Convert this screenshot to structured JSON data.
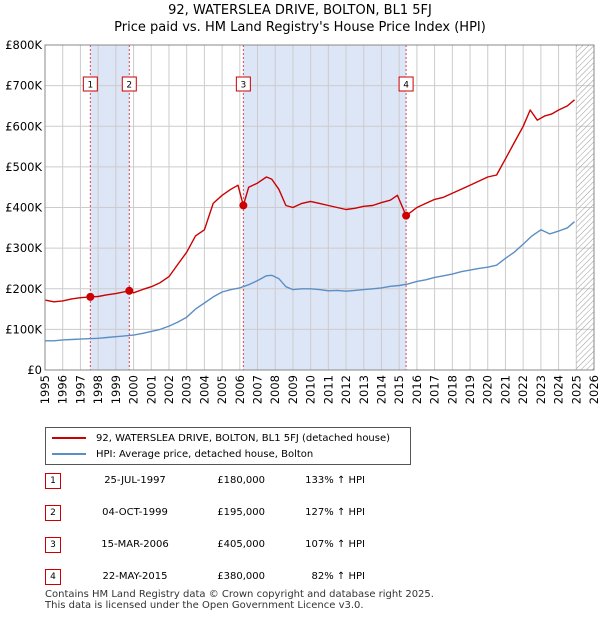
{
  "chart_data": {
    "type": "line",
    "title": "92, WATERSLEA DRIVE, BOLTON, BL1 5FJ",
    "subtitle": "Price paid vs. HM Land Registry's House Price Index (HPI)",
    "xlabel": "",
    "ylabel": "",
    "xlim": [
      1995,
      2026
    ],
    "ylim": [
      0,
      800000
    ],
    "x_ticks": [
      "1995",
      "1996",
      "1997",
      "1998",
      "1999",
      "2000",
      "2001",
      "2002",
      "2003",
      "2004",
      "2005",
      "2006",
      "2007",
      "2008",
      "2009",
      "2010",
      "2011",
      "2012",
      "2013",
      "2014",
      "2015",
      "2016",
      "2017",
      "2018",
      "2019",
      "2020",
      "2021",
      "2022",
      "2023",
      "2024",
      "2025",
      "2026"
    ],
    "y_ticks": [
      "£0",
      "£100K",
      "£200K",
      "£300K",
      "£400K",
      "£500K",
      "£600K",
      "£700K",
      "£800K"
    ],
    "y_tick_values": [
      0,
      100000,
      200000,
      300000,
      400000,
      500000,
      600000,
      700000,
      800000
    ],
    "colors": {
      "property": "#cc0000",
      "hpi": "#5b8ec4",
      "shade": "#dde6f7",
      "grid": "#cccccc",
      "marker": "#cc0000",
      "hatch": "#999999"
    },
    "forecast_start": 2025.0,
    "series": [
      {
        "name": "92, WATERSLEA DRIVE, BOLTON, BL1 5FJ (detached house)",
        "color": "#cc0000",
        "x": [
          1995.0,
          1995.5,
          1996.0,
          1996.5,
          1997.0,
          1997.56,
          1998.0,
          1998.5,
          1999.0,
          1999.76,
          2000.0,
          2000.5,
          2001.0,
          2001.5,
          2002.0,
          2002.5,
          2003.0,
          2003.5,
          2004.0,
          2004.5,
          2005.0,
          2005.5,
          2005.9,
          2006.2,
          2006.5,
          2007.0,
          2007.5,
          2007.8,
          2008.2,
          2008.6,
          2009.0,
          2009.5,
          2010.0,
          2010.5,
          2011.0,
          2011.5,
          2012.0,
          2012.5,
          2013.0,
          2013.5,
          2014.0,
          2014.5,
          2014.9,
          2015.39,
          2015.7,
          2016.0,
          2016.5,
          2017.0,
          2017.5,
          2018.0,
          2018.5,
          2019.0,
          2019.5,
          2020.0,
          2020.5,
          2021.0,
          2021.5,
          2022.0,
          2022.4,
          2022.8,
          2023.2,
          2023.6,
          2024.0,
          2024.5,
          2024.9
        ],
        "values": [
          172000,
          168000,
          170000,
          175000,
          178000,
          180000,
          181000,
          185000,
          188000,
          195000,
          190000,
          198000,
          205000,
          215000,
          230000,
          260000,
          290000,
          330000,
          345000,
          410000,
          430000,
          445000,
          455000,
          405000,
          450000,
          460000,
          475000,
          470000,
          445000,
          405000,
          400000,
          410000,
          415000,
          410000,
          405000,
          400000,
          395000,
          398000,
          403000,
          405000,
          412000,
          418000,
          430000,
          380000,
          390000,
          400000,
          410000,
          420000,
          425000,
          435000,
          445000,
          455000,
          465000,
          475000,
          480000,
          520000,
          560000,
          600000,
          640000,
          615000,
          625000,
          630000,
          640000,
          650000,
          665000
        ]
      },
      {
        "name": "HPI: Average price, detached house, Bolton",
        "color": "#5b8ec4",
        "x": [
          1995.0,
          1995.5,
          1996.0,
          1996.5,
          1997.0,
          1997.5,
          1998.0,
          1998.5,
          1999.0,
          1999.5,
          2000.0,
          2000.5,
          2001.0,
          2001.5,
          2002.0,
          2002.5,
          2003.0,
          2003.5,
          2004.0,
          2004.5,
          2005.0,
          2005.5,
          2006.0,
          2006.5,
          2007.0,
          2007.5,
          2007.8,
          2008.2,
          2008.6,
          2009.0,
          2009.5,
          2010.0,
          2010.5,
          2011.0,
          2011.5,
          2012.0,
          2012.5,
          2013.0,
          2013.5,
          2014.0,
          2014.5,
          2015.0,
          2015.5,
          2016.0,
          2016.5,
          2017.0,
          2017.5,
          2018.0,
          2018.5,
          2019.0,
          2019.5,
          2020.0,
          2020.5,
          2021.0,
          2021.5,
          2022.0,
          2022.5,
          2023.0,
          2023.5,
          2024.0,
          2024.5,
          2024.9
        ],
        "values": [
          72000,
          72000,
          74000,
          75000,
          76000,
          77000,
          78000,
          80000,
          82000,
          84000,
          86000,
          90000,
          95000,
          100000,
          108000,
          118000,
          130000,
          150000,
          165000,
          180000,
          192000,
          198000,
          202000,
          210000,
          220000,
          232000,
          233000,
          225000,
          205000,
          198000,
          200000,
          200000,
          198000,
          195000,
          196000,
          194000,
          196000,
          198000,
          200000,
          202000,
          206000,
          208000,
          212000,
          218000,
          222000,
          228000,
          232000,
          236000,
          242000,
          246000,
          250000,
          253000,
          258000,
          275000,
          290000,
          310000,
          330000,
          345000,
          335000,
          342000,
          350000,
          365000
        ]
      }
    ],
    "sale_points": [
      {
        "label": "1",
        "x": 1997.56,
        "value": 180000
      },
      {
        "label": "2",
        "x": 1999.76,
        "value": 195000
      },
      {
        "label": "3",
        "x": 2006.2,
        "value": 405000
      },
      {
        "label": "4",
        "x": 2015.39,
        "value": 380000
      }
    ],
    "shaded_ranges": [
      [
        1997.56,
        1999.76
      ],
      [
        2006.2,
        2015.39
      ]
    ]
  },
  "legend": {
    "property_label": "92, WATERSLEA DRIVE, BOLTON, BL1 5FJ (detached house)",
    "hpi_label": "HPI: Average price, detached house, Bolton"
  },
  "sales": [
    {
      "num": "1",
      "date": "25-JUL-1997",
      "price": "£180,000",
      "hpi": "133% ↑ HPI"
    },
    {
      "num": "2",
      "date": "04-OCT-1999",
      "price": "£195,000",
      "hpi": "127% ↑ HPI"
    },
    {
      "num": "3",
      "date": "15-MAR-2006",
      "price": "£405,000",
      "hpi": "107% ↑ HPI"
    },
    {
      "num": "4",
      "date": "22-MAY-2015",
      "price": "£380,000",
      "hpi": "82% ↑ HPI"
    }
  ],
  "footer": {
    "line1": "Contains HM Land Registry data © Crown copyright and database right 2025.",
    "line2": "This data is licensed under the Open Government Licence v3.0."
  }
}
